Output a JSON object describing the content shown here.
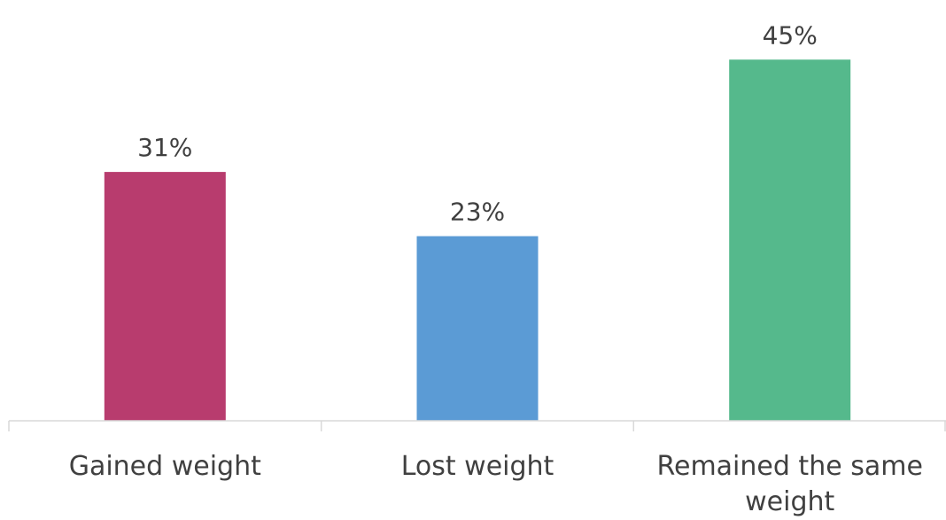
{
  "chart_data": {
    "type": "bar",
    "title": "",
    "xlabel": "",
    "ylabel": "",
    "categories": [
      [
        "Gained weight"
      ],
      [
        "Lost weight"
      ],
      [
        "Remained the same",
        "weight"
      ]
    ],
    "values": [
      31,
      23,
      45
    ],
    "value_labels": [
      "31%",
      "23%",
      "45%"
    ],
    "unit": "%",
    "colors": [
      "#b83c6e",
      "#5b9bd5",
      "#55b98c"
    ],
    "ylim": [
      0,
      50
    ],
    "grid": false,
    "legend": "none"
  }
}
